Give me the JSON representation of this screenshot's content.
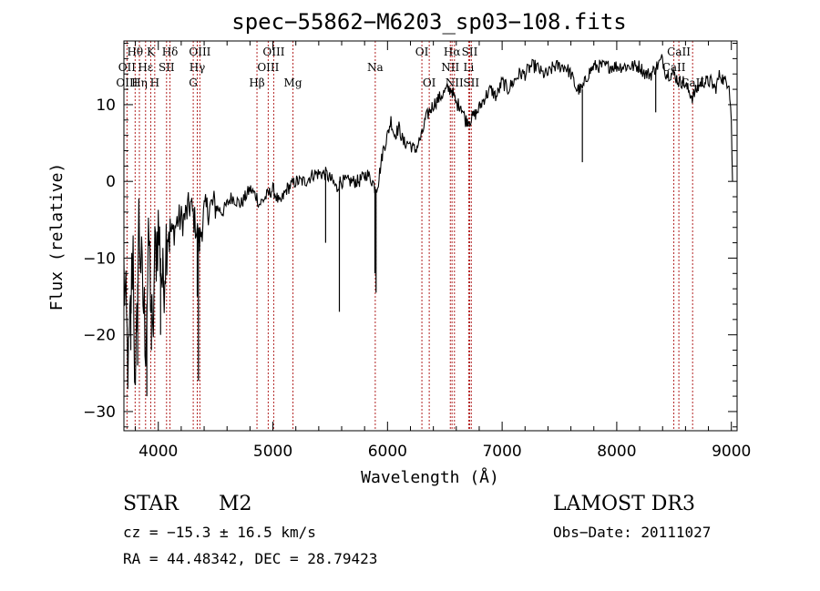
{
  "chart_data": {
    "type": "line",
    "title": "spec−55862−M6203_sp03−108.fits",
    "xlabel": "Wavelength (Å)",
    "ylabel": "Flux (relative)",
    "xlim": [
      3700,
      9050
    ],
    "ylim": [
      -32.5,
      18.3
    ],
    "xticks": [
      4000,
      5000,
      6000,
      7000,
      8000,
      9000
    ],
    "xtick_labels": [
      "4000",
      "5000",
      "6000",
      "7000",
      "8000",
      "9000"
    ],
    "yticks": [
      10,
      0,
      -10,
      -20,
      -30
    ],
    "ytick_labels": [
      "10",
      "0",
      "−10",
      "−20",
      "−30"
    ],
    "spectrum": {
      "x": [
        3700,
        3740,
        3780,
        3800,
        3830,
        3860,
        3890,
        3920,
        3950,
        3970,
        4000,
        4040,
        4080,
        4120,
        4170,
        4220,
        4280,
        4330,
        4360,
        4400,
        4480,
        4560,
        4640,
        4720,
        4800,
        4860,
        4880,
        4940,
        5000,
        5060,
        5120,
        5200,
        5280,
        5360,
        5420,
        5460,
        5520,
        5560,
        5580,
        5620,
        5680,
        5750,
        5820,
        5870,
        5900,
        5920,
        5960,
        6000,
        6030,
        6060,
        6100,
        6140,
        6190,
        6240,
        6300,
        6330,
        6360,
        6400,
        6460,
        6520,
        6560,
        6600,
        6640,
        6680,
        6720,
        6780,
        6850,
        6900,
        6950,
        7000,
        7050,
        7100,
        7150,
        7200,
        7250,
        7300,
        7350,
        7400,
        7450,
        7500,
        7550,
        7600,
        7650,
        7700,
        7750,
        7800,
        7850,
        7900,
        7950,
        8000,
        8050,
        8100,
        8150,
        8200,
        8250,
        8300,
        8350,
        8400,
        8430,
        8460,
        8500,
        8540,
        8580,
        8620,
        8660,
        8700,
        8740,
        8780,
        8820,
        8860,
        8900,
        8940,
        8980,
        9000,
        9010
      ],
      "y": [
        -12,
        -25,
        -8,
        -30,
        -5,
        -14,
        -20,
        -8,
        -22,
        -10,
        -6,
        -14,
        -5,
        -7,
        -5,
        -5,
        -3,
        -6,
        -8,
        -4,
        -3,
        -4,
        -2,
        -3,
        -1,
        -2,
        -3,
        -2,
        -1,
        -3,
        -1,
        0,
        0,
        1,
        1,
        1,
        0,
        -1,
        0,
        0,
        0,
        0,
        1,
        0,
        -1,
        0,
        4,
        6,
        8,
        6,
        7,
        5,
        5,
        4,
        6,
        8,
        9,
        10,
        11,
        12,
        12,
        10,
        10,
        8,
        8,
        9,
        11,
        12,
        11,
        13,
        12,
        13,
        14,
        14,
        15,
        15,
        14,
        14,
        15,
        15,
        15,
        14,
        12,
        12,
        14,
        15,
        15,
        15,
        15,
        15,
        15,
        15,
        15,
        15,
        14,
        14,
        15,
        16,
        14,
        14,
        14,
        13,
        13,
        12,
        11,
        12,
        13,
        13,
        13,
        12,
        14,
        13,
        13,
        8,
        0
      ]
    },
    "absorption_dips": [
      {
        "x": 3760,
        "y": -22
      },
      {
        "x": 3820,
        "y": -24
      },
      {
        "x": 3900,
        "y": -28
      },
      {
        "x": 3940,
        "y": -22
      },
      {
        "x": 4020,
        "y": -20
      },
      {
        "x": 4340,
        "y": -15
      },
      {
        "x": 4350,
        "y": -26
      },
      {
        "x": 5460,
        "y": -8
      },
      {
        "x": 5580,
        "y": -17
      },
      {
        "x": 5890,
        "y": -12
      },
      {
        "x": 5900,
        "y": -14.5
      },
      {
        "x": 7700,
        "y": 2.5
      },
      {
        "x": 8340,
        "y": 9
      }
    ],
    "spectral_lines": [
      {
        "label": "Hθ",
        "x": 3798,
        "row": 1
      },
      {
        "label": "OII",
        "x": 3727,
        "row": 2
      },
      {
        "label": "OIII",
        "x": 3727,
        "row": 3
      },
      {
        "label": "K",
        "x": 3934,
        "row": 1
      },
      {
        "label": "Hε",
        "x": 3889,
        "row": 2
      },
      {
        "label": "Hη",
        "x": 3835,
        "row": 3
      },
      {
        "label": "Hδ",
        "x": 4102,
        "row": 1
      },
      {
        "label": "SII",
        "x": 4072,
        "row": 2
      },
      {
        "label": "H",
        "x": 3969,
        "row": 3
      },
      {
        "label": "OIII",
        "x": 4363,
        "row": 1
      },
      {
        "label": "Hγ",
        "x": 4340,
        "row": 2
      },
      {
        "label": "G",
        "x": 4305,
        "row": 3
      },
      {
        "label": "OIII",
        "x": 5007,
        "row": 1
      },
      {
        "label": "OIII",
        "x": 4959,
        "row": 2
      },
      {
        "label": "Hβ",
        "x": 4861,
        "row": 3
      },
      {
        "label": "Mg",
        "x": 5175,
        "row": 3
      },
      {
        "label": "Na",
        "x": 5893,
        "row": 2
      },
      {
        "label": "OI",
        "x": 6300,
        "row": 1
      },
      {
        "label": "OI",
        "x": 6364,
        "row": 3
      },
      {
        "label": "Hα",
        "x": 6563,
        "row": 1
      },
      {
        "label": "SII",
        "x": 6717,
        "row": 1
      },
      {
        "label": "NII",
        "x": 6548,
        "row": 2
      },
      {
        "label": "Li",
        "x": 6708,
        "row": 2
      },
      {
        "label": "NII",
        "x": 6584,
        "row": 3
      },
      {
        "label": "SII",
        "x": 6731,
        "row": 3
      },
      {
        "label": "CaII",
        "x": 8542,
        "row": 1
      },
      {
        "label": "CaII",
        "x": 8498,
        "row": 2
      },
      {
        "label": "CaII",
        "x": 8662,
        "row": 3
      }
    ],
    "line_marker_color": "#b22222"
  },
  "info": {
    "object_class": "STAR",
    "subclass": "M2",
    "survey": "LAMOST  DR3",
    "velocity": "cz = −15.3 ± 16.5 km/s",
    "obs_date": "Obs−Date: 20111027",
    "coords": "RA =  44.48342, DEC =  28.79423"
  }
}
